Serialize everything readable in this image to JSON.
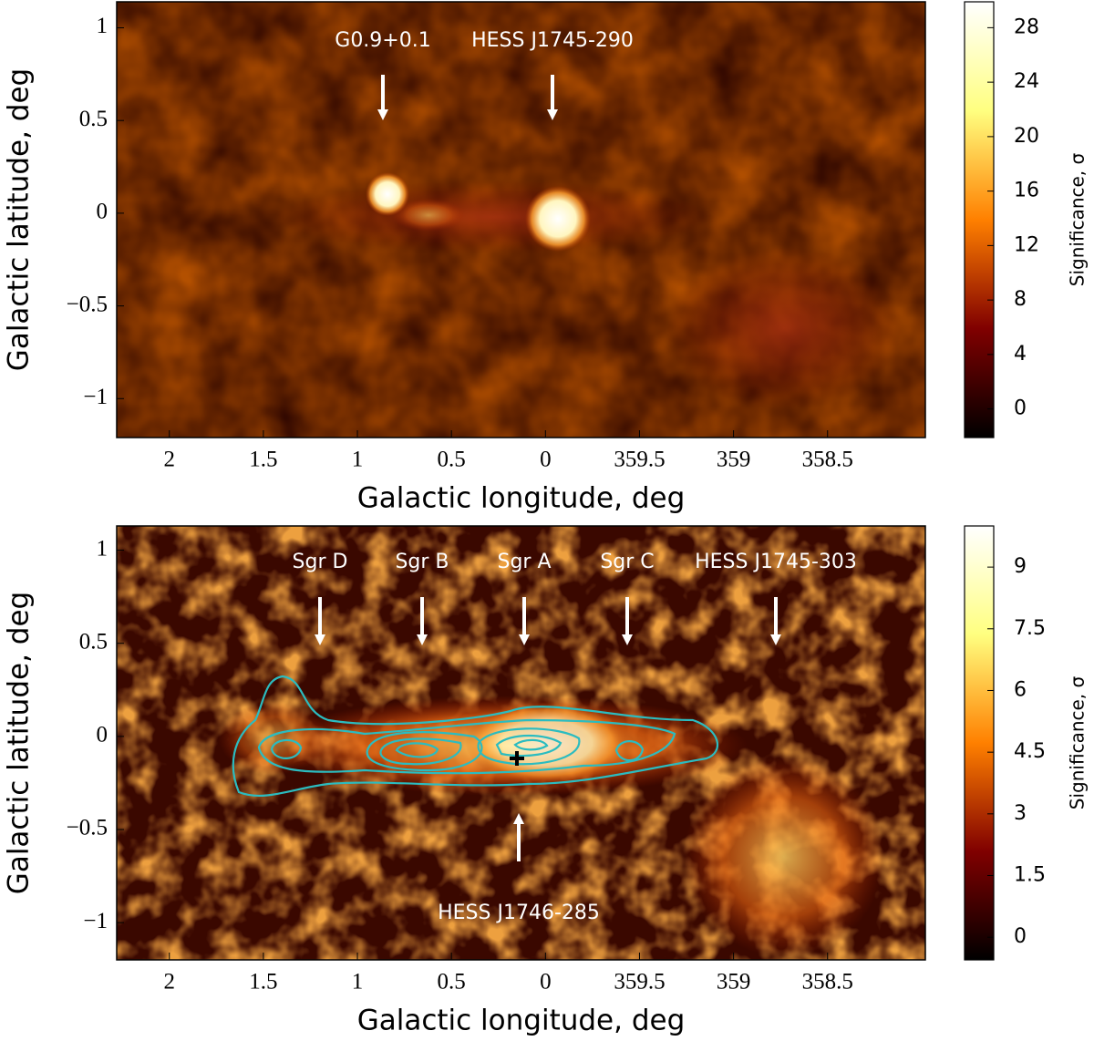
{
  "chart_data": [
    {
      "type": "heatmap",
      "xlabel": "Galactic longitude, deg",
      "ylabel": "Galactic latitude, deg",
      "xlim": [
        2.28,
        -2.02
      ],
      "ylim": [
        -1.21,
        1.14
      ],
      "xticks": [
        2,
        1.5,
        1,
        0.5,
        0,
        {
          "value": -0.5,
          "label": "359.5"
        },
        {
          "value": -1,
          "label": "359"
        },
        {
          "value": -1.5,
          "label": "358.5"
        }
      ],
      "yticks": [
        {
          "value": -1,
          "label": "−1"
        },
        {
          "value": -0.5,
          "label": "−0.5"
        },
        0,
        0.5,
        1
      ],
      "colorbar_label": "Significance, σ",
      "clim": [
        -2.1,
        29.9
      ],
      "cticks": [
        0,
        4,
        8,
        12,
        16,
        20,
        24,
        28
      ],
      "annotations": [
        "G0.9+0.1",
        "HESS J1745-290"
      ]
    },
    {
      "type": "heatmap",
      "xlabel": "Galactic longitude, deg",
      "ylabel": "Galactic latitude, deg",
      "xlim": [
        2.28,
        -2.02
      ],
      "ylim": [
        -1.2,
        1.13
      ],
      "xticks": [
        2,
        1.5,
        1,
        0.5,
        0,
        {
          "value": -0.5,
          "label": "359.5"
        },
        {
          "value": -1,
          "label": "359"
        },
        {
          "value": -1.5,
          "label": "358.5"
        }
      ],
      "yticks": [
        {
          "value": -1,
          "label": "−1"
        },
        {
          "value": -0.5,
          "label": "−0.5"
        },
        0,
        0.5,
        1
      ],
      "colorbar_label": "Significance, σ",
      "clim": [
        -0.55,
        10
      ],
      "cticks": [
        0,
        1.5,
        3,
        4.5,
        6,
        7.5,
        9
      ],
      "annotations": [
        "Sgr D",
        "Sgr B",
        "Sgr A",
        "Sgr C",
        "HESS J1745-303",
        "HESS J1746-285"
      ]
    }
  ]
}
